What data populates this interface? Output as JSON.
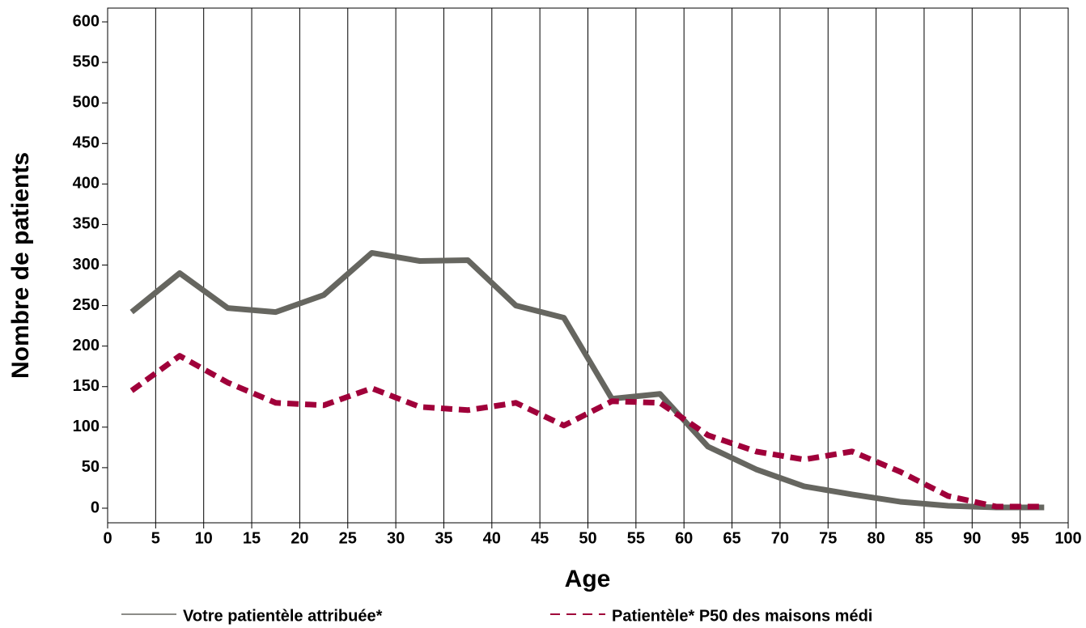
{
  "chart_data": {
    "type": "line",
    "x_label": "Age",
    "y_label": "Nombre de patients",
    "x": [
      2.5,
      7.5,
      12.5,
      17.5,
      22.5,
      27.5,
      32.5,
      37.5,
      42.5,
      47.5,
      52.5,
      57.5,
      62.5,
      67.5,
      72.5,
      77.5,
      82.5,
      87.5,
      92.5,
      97.5
    ],
    "series": [
      {
        "name": "Votre patientèle attribuée*",
        "color": "#666660",
        "dash": false,
        "values": [
          242,
          290,
          247,
          242,
          263,
          315,
          305,
          306,
          250,
          235,
          135,
          141,
          76,
          48,
          27,
          17,
          8,
          3,
          1,
          1
        ]
      },
      {
        "name": "Patientèle* P50 des maisons médi",
        "color": "#a0003a",
        "dash": true,
        "values": [
          145,
          188,
          155,
          130,
          127,
          148,
          125,
          121,
          130,
          102,
          132,
          130,
          90,
          70,
          60,
          70,
          45,
          15,
          2,
          2
        ]
      }
    ],
    "xlim": [
      0,
      100
    ],
    "xticks": [
      0,
      5,
      10,
      15,
      20,
      25,
      30,
      35,
      40,
      45,
      50,
      55,
      60,
      65,
      70,
      75,
      80,
      85,
      90,
      95,
      100
    ],
    "ylim": [
      -18,
      617
    ],
    "yticks": [
      0,
      50,
      100,
      150,
      200,
      250,
      300,
      350,
      400,
      450,
      500,
      550,
      600
    ],
    "grid_x": true
  }
}
